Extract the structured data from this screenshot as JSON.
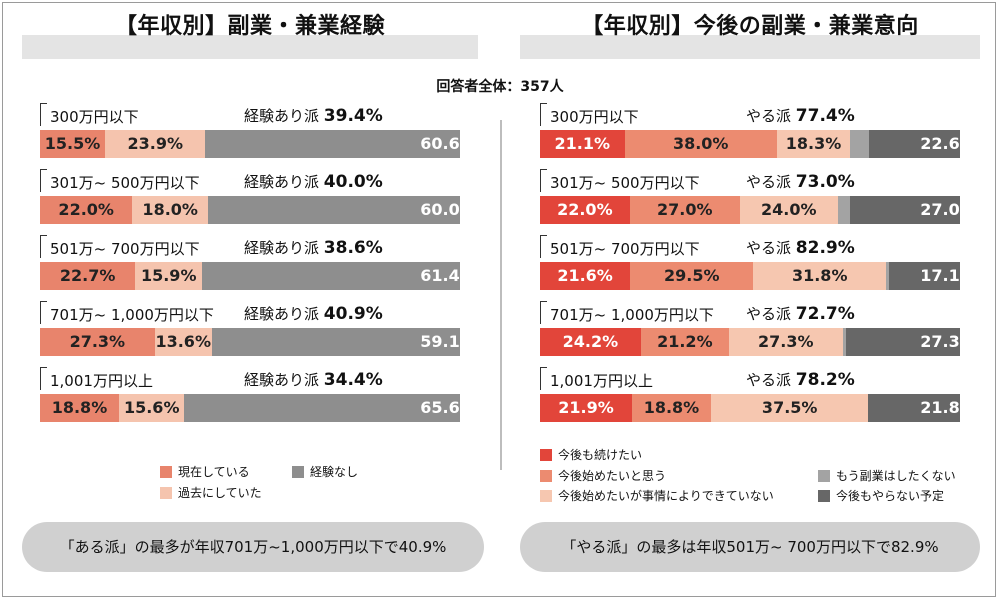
{
  "left": {
    "title": "【年収別】副業・兼業経験",
    "header_label": "経験あり派",
    "categories": [
      "300万円以下",
      "301万~ 500万円以下",
      "501万~ 700万円以下",
      "701万~ 1,000万円以下",
      "1,001万円以上"
    ],
    "header_values": [
      "39.4%",
      "40.0%",
      "38.6%",
      "40.9%",
      "34.4%"
    ],
    "legend": [
      "現在している",
      "過去にしていた",
      "経験なし"
    ],
    "colors": [
      "#e8846c",
      "#f5c4ae",
      "#8e8e8e"
    ],
    "callout": "「ある派」の最多が年収701万~1,000万円以下で40.9%"
  },
  "right": {
    "title": "【年収別】今後の副業・兼業意向",
    "header_label": "やる派",
    "categories": [
      "300万円以下",
      "301万~ 500万円以下",
      "501万~ 700万円以下",
      "701万~ 1,000万円以下",
      "1,001万円以上"
    ],
    "header_values": [
      "77.4%",
      "73.0%",
      "82.9%",
      "72.7%",
      "78.2%"
    ],
    "legend": [
      "今後も続けたい",
      "今後始めたいと思う",
      "今後始めたいが事情によりできていない",
      "もう副業はしたくない",
      "今後もやらない予定"
    ],
    "colors": [
      "#e2453a",
      "#ec8b70",
      "#f6c7b0",
      "#a3a3a3",
      "#676767"
    ],
    "callout": "「やる派」の最多は年収501万~ 700万円以下で82.9%"
  },
  "total_label": "回答者全体：357人",
  "chart_data": [
    {
      "type": "bar",
      "orientation": "horizontal-stacked",
      "title": "【年収別】副業・兼業経験",
      "categories": [
        "300万円以下",
        "301万~ 500万円以下",
        "501万~ 700万円以下",
        "701万~ 1,000万円以下",
        "1,001万円以上"
      ],
      "series": [
        {
          "name": "現在している",
          "values": [
            15.5,
            22.0,
            22.7,
            27.3,
            18.8
          ],
          "labels": [
            "15.5%",
            "22.0%",
            "22.7%",
            "27.3%",
            "18.8%"
          ]
        },
        {
          "name": "過去にしていた",
          "values": [
            23.9,
            18.0,
            15.9,
            13.6,
            15.6
          ],
          "labels": [
            "23.9%",
            "18.0%",
            "15.9%",
            "13.6%",
            "15.6%"
          ]
        },
        {
          "name": "経験なし",
          "values": [
            60.6,
            60.0,
            61.4,
            59.1,
            65.6
          ],
          "labels": [
            "60.6",
            "60.0",
            "61.4",
            "59.1",
            "65.6"
          ]
        }
      ]
    },
    {
      "type": "bar",
      "orientation": "horizontal-stacked",
      "title": "【年収別】今後の副業・兼業意向",
      "categories": [
        "300万円以下",
        "301万~ 500万円以下",
        "501万~ 700万円以下",
        "701万~ 1,000万円以下",
        "1,001万円以上"
      ],
      "series": [
        {
          "name": "今後も続けたい",
          "values": [
            21.1,
            22.0,
            21.6,
            24.2,
            21.9
          ],
          "labels": [
            "21.1%",
            "22.0%",
            "21.6%",
            "24.2%",
            "21.9%"
          ]
        },
        {
          "name": "今後始めたいと思う",
          "values": [
            38.0,
            27.0,
            29.5,
            21.2,
            18.8
          ],
          "labels": [
            "38.0%",
            "27.0%",
            "29.5%",
            "21.2%",
            "18.8%"
          ]
        },
        {
          "name": "今後始めたいが事情によりできていない",
          "values": [
            18.3,
            24.0,
            31.8,
            27.3,
            37.5
          ],
          "labels": [
            "18.3%",
            "24.0%",
            "31.8%",
            "27.3%",
            "37.5%"
          ]
        },
        {
          "name": "もう副業はしたくない",
          "values": [
            4.8,
            3.0,
            0.6,
            0.9,
            0
          ],
          "labels": [
            "",
            "",
            "",
            "",
            ""
          ]
        },
        {
          "name": "今後もやらない予定",
          "values": [
            22.6,
            27.0,
            17.1,
            27.3,
            21.8
          ],
          "labels": [
            "22.6",
            "27.0",
            "17.1",
            "27.3",
            "21.8"
          ]
        }
      ]
    }
  ]
}
